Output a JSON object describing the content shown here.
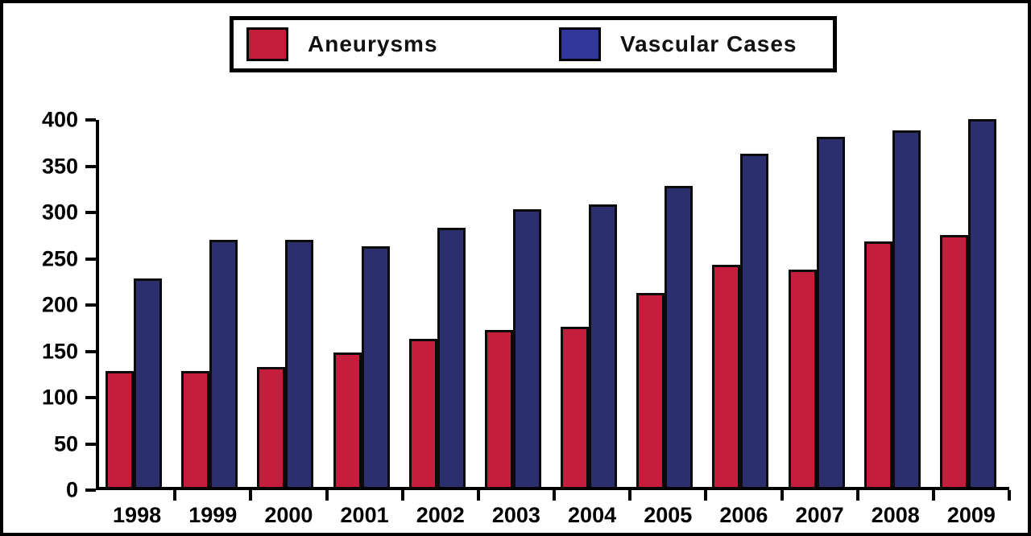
{
  "legend": {
    "items": [
      {
        "label": "Aneurysms",
        "swatch_color": "#C41E3C"
      },
      {
        "label": "Vascular Cases",
        "swatch_color": "#31379B"
      }
    ]
  },
  "chart_data": {
    "type": "bar",
    "title": "",
    "xlabel": "",
    "ylabel": "",
    "categories": [
      "1998",
      "1999",
      "2000",
      "2001",
      "2002",
      "2003",
      "2004",
      "2005",
      "2006",
      "2007",
      "2008",
      "2009"
    ],
    "series": [
      {
        "name": "Aneurysms",
        "color": "#C41E3C",
        "values": [
          125,
          125,
          130,
          145,
          160,
          170,
          173,
          210,
          240,
          235,
          265,
          272
        ]
      },
      {
        "name": "Vascular Cases",
        "color": "#2B2F6E",
        "values": [
          225,
          267,
          267,
          260,
          280,
          300,
          305,
          325,
          360,
          378,
          385,
          397
        ]
      }
    ],
    "ylim": [
      0,
      400
    ],
    "ytick_step": 50,
    "ytick_labels": [
      "0",
      "50",
      "100",
      "150",
      "200",
      "250",
      "300",
      "350",
      "400"
    ],
    "grid": false,
    "legend_position": "top"
  }
}
